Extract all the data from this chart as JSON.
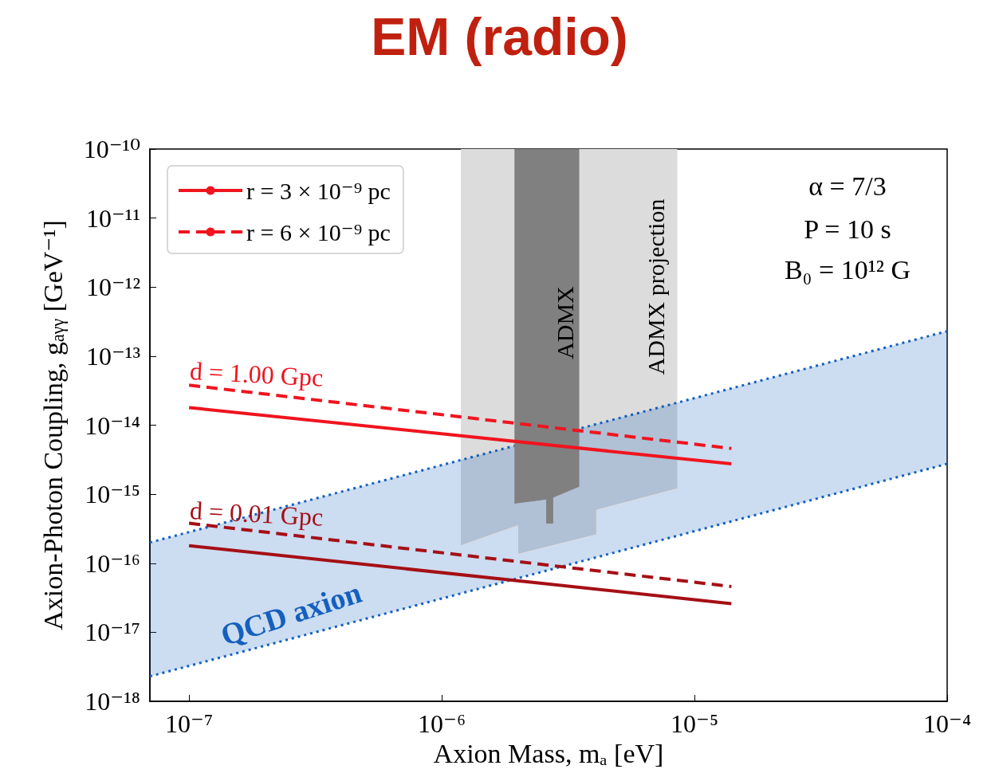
{
  "chart_data": {
    "type": "line",
    "title": "EM (radio)",
    "xlabel": "Axion Mass, mₐ [eV]",
    "ylabel": "Axion-Photon Coupling, g$_{aγγ}$ [GeV⁻¹]",
    "log": "xy",
    "grid": false,
    "legend": "top left",
    "marker": "none",
    "xlim": [
      7e-08,
      0.0001
    ],
    "xticks": [
      {
        "value": 1e-07,
        "label": "10⁻⁷"
      },
      {
        "value": 1e-06,
        "label": "10⁻⁶"
      },
      {
        "value": 1e-05,
        "label": "10⁻⁵"
      },
      {
        "value": 0.0001,
        "label": "10⁻⁴"
      }
    ],
    "ylim": [
      1e-18,
      1e-10
    ],
    "yticks": [
      {
        "value": 1e-18,
        "label": "10⁻¹⁸"
      },
      {
        "value": 1e-17,
        "label": "10⁻¹⁷"
      },
      {
        "value": 1e-16,
        "label": "10⁻¹⁶"
      },
      {
        "value": 1e-15,
        "label": "10⁻¹⁵"
      },
      {
        "value": 1e-14,
        "label": "10⁻¹⁴"
      },
      {
        "value": 1e-13,
        "label": "10⁻¹³"
      },
      {
        "value": 1e-12,
        "label": "10⁻¹²"
      },
      {
        "value": 1e-11,
        "label": "10⁻¹¹"
      },
      {
        "value": 1e-10,
        "label": "10⁻¹⁰"
      }
    ],
    "series": [
      {
        "color": "#dcdcdc",
        "x": [
          1.19e-06,
          2e-06,
          2e-06,
          4.1e-06,
          4.1e-06,
          8.55e-06
        ],
        "values": [
          1.8e-16,
          3.5e-16,
          1.35e-16,
          2.6e-16,
          5.9e-16,
          1.2e-15
        ],
        "lower": [
          1.8e-16,
          3.5e-16,
          1.35e-16,
          2.6e-16,
          5.9e-16,
          1.2e-15
        ],
        "upper": [
          1e-10,
          1e-10,
          1e-10,
          1e-10,
          1e-10,
          1e-10
        ]
      },
      {
        "color": "#1560bd",
        "line_style": "dotted",
        "x": [
          7e-08,
          0.0001
        ],
        "values": [
          2e-16,
          2.3e-13
        ],
        "upper": [
          2e-16,
          2.3e-13
        ],
        "lower": [
          2.3e-18,
          2.75e-15
        ]
      },
      {
        "color": "#1560bd",
        "line_style": "dotted",
        "x": [
          7e-08,
          0.0001
        ],
        "values": [
          2.3e-18,
          2.75e-15
        ]
      },
      {
        "color": "#808080",
        "x": [
          1.94e-06,
          2.6e-06,
          2.6e-06,
          2.75e-06,
          2.75e-06,
          3.5e-06
        ],
        "values": [
          7.4e-16,
          8.5e-16,
          3.8e-16,
          3.8e-16,
          9e-16,
          1.3e-15
        ],
        "lower": [
          7.4e-16,
          8.5e-16,
          3.8e-16,
          3.8e-16,
          9e-16,
          1.3e-15
        ],
        "upper": [
          1e-10,
          1e-10,
          1e-10,
          1e-10,
          1e-10,
          1e-10
        ]
      },
      {
        "name": "r = 3 × 10⁻⁹ pc",
        "color": "#f0141e",
        "line_style": "solid",
        "x": [
          1e-07,
          1.4e-05
        ],
        "values": [
          1.8e-14,
          2.75e-15
        ]
      },
      {
        "name": "r = 6 × 10⁻⁹ pc",
        "color": "#f0141e",
        "line_style": "dashed",
        "x": [
          1e-07,
          1.4e-05
        ],
        "values": [
          3.8e-14,
          4.6e-15
        ]
      },
      {
        "color": "#a50f15",
        "line_style": "solid",
        "x": [
          1e-07,
          1.4e-05
        ],
        "values": [
          1.8e-16,
          2.6e-17
        ]
      },
      {
        "color": "#a50f15",
        "line_style": "dashed",
        "x": [
          1e-07,
          1.4e-05
        ],
        "values": [
          3.8e-16,
          4.6e-17
        ]
      }
    ],
    "annotations": [
      "d = 1.00 Gpc",
      "d = 0.01 Gpc",
      "QCD axion",
      "ADMX",
      "ADMX projection",
      "α = 7/3",
      "P = 10 s",
      "B₀ = 10¹² G"
    ]
  }
}
